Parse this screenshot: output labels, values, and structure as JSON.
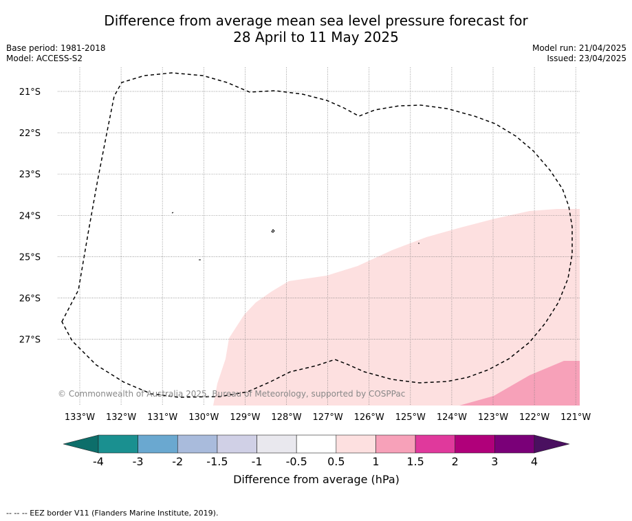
{
  "title": {
    "line1": "Difference from average mean sea level pressure forecast for",
    "line2": "28 April to 11 May 2025"
  },
  "meta": {
    "base_period": "Base period: 1981-2018",
    "model": "Model: ACCESS-S2",
    "model_run": "Model run: 21/04/2025",
    "issued": "Issued: 23/04/2025"
  },
  "map": {
    "lat_labels": [
      "21°S",
      "22°S",
      "23°S",
      "24°S",
      "25°S",
      "26°S",
      "27°S"
    ],
    "lon_labels": [
      "133°W",
      "132°W",
      "131°W",
      "130°W",
      "129°W",
      "128°W",
      "127°W",
      "126°W",
      "125°W",
      "124°W",
      "123°W",
      "122°W",
      "121°W"
    ],
    "copyright": "© Commonwealth of Australia 2025, Bureau of Meteorology, supported by COSPPac",
    "fill_colors": {
      "band_0.5_1": "#fde0e0",
      "band_1_1.5": "#f7a1b9"
    }
  },
  "colorbar": {
    "tick_labels": [
      "-4",
      "-3",
      "-2",
      "-1.5",
      "-1",
      "-0.5",
      "0.5",
      "1",
      "1.5",
      "2",
      "3",
      "4"
    ],
    "colors": [
      "#1a9090",
      "#6aa8d0",
      "#a9bbdc",
      "#d0d0e6",
      "#e9e8ee",
      "#ffffff",
      "#fde0e0",
      "#f7a1b9",
      "#e0399c",
      "#b0007a",
      "#7a0078"
    ],
    "under_color": "#0d6e6a",
    "over_color": "#4a1060",
    "label": "Difference from average (hPa)"
  },
  "footnote": "--  --  -- EEZ border V11 (Flanders Marine Institute, 2019)."
}
